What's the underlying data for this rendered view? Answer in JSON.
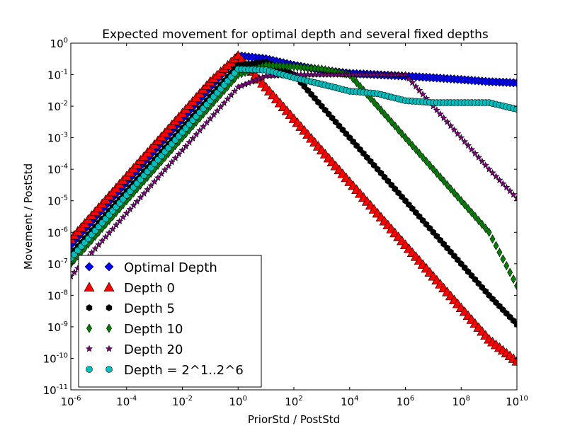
{
  "chart_data": {
    "type": "scatter",
    "title": "Expected movement for optimal depth and several fixed depths",
    "xlabel": "PriorStd / PostStd",
    "ylabel": "Movement / PostStd",
    "x_scale": "log",
    "y_scale": "log",
    "xlim": [
      1e-06,
      10000000000.0
    ],
    "ylim": [
      1e-11,
      1
    ],
    "grid": false,
    "legend_position": "lower-left",
    "x_ticks": [
      {
        "base": "10",
        "exp": "-6"
      },
      {
        "base": "10",
        "exp": "-4"
      },
      {
        "base": "10",
        "exp": "-2"
      },
      {
        "base": "10",
        "exp": "0"
      },
      {
        "base": "10",
        "exp": "2"
      },
      {
        "base": "10",
        "exp": "4"
      },
      {
        "base": "10",
        "exp": "6"
      },
      {
        "base": "10",
        "exp": "8"
      },
      {
        "base": "10",
        "exp": "10"
      }
    ],
    "y_ticks": [
      {
        "base": "10",
        "exp": "0"
      },
      {
        "base": "10",
        "exp": "-1"
      },
      {
        "base": "10",
        "exp": "-2"
      },
      {
        "base": "10",
        "exp": "-3"
      },
      {
        "base": "10",
        "exp": "-4"
      },
      {
        "base": "10",
        "exp": "-5"
      },
      {
        "base": "10",
        "exp": "-6"
      },
      {
        "base": "10",
        "exp": "-7"
      },
      {
        "base": "10",
        "exp": "-8"
      },
      {
        "base": "10",
        "exp": "-9"
      },
      {
        "base": "10",
        "exp": "-10"
      },
      {
        "base": "10",
        "exp": "-11"
      }
    ],
    "series": [
      {
        "name": "Optimal Depth",
        "marker": "diamond",
        "color": "#0000ff",
        "x": [
          1e-06,
          1e-05,
          0.0001,
          0.001,
          0.01,
          0.1,
          1,
          10,
          100,
          1000.0,
          10000.0,
          100000.0,
          1000000.0,
          10000000.0,
          100000000.0,
          1000000000.0,
          10000000000.0
        ],
        "y": [
          4e-07,
          4e-06,
          4e-05,
          0.0004,
          0.004,
          0.04,
          0.4,
          0.32,
          0.2,
          0.14,
          0.11,
          0.1,
          0.09,
          0.08,
          0.07,
          0.06,
          0.055
        ]
      },
      {
        "name": "Depth 0",
        "marker": "triangle",
        "color": "#ff0000",
        "x": [
          1e-06,
          1e-05,
          0.0001,
          0.001,
          0.01,
          0.1,
          1,
          10,
          100,
          1000.0,
          10000.0,
          100000.0,
          1000000.0,
          10000000.0,
          100000000.0,
          1000000000.0,
          10000000000.0
        ],
        "y": [
          6e-07,
          6e-06,
          6e-05,
          0.0006,
          0.006,
          0.06,
          0.4,
          0.04,
          0.004,
          0.0004,
          4e-05,
          4e-06,
          4e-07,
          4e-08,
          4e-09,
          4e-10,
          8e-11
        ]
      },
      {
        "name": "Depth 5",
        "marker": "hexagon",
        "color": "#000000",
        "x": [
          1e-06,
          1e-05,
          0.0001,
          0.001,
          0.01,
          0.1,
          1,
          10,
          100,
          1000.0,
          10000.0,
          100000.0,
          1000000.0,
          10000000.0,
          100000000.0,
          1000000000.0,
          10000000000.0
        ],
        "y": [
          2e-07,
          2e-06,
          2e-05,
          0.0002,
          0.002,
          0.02,
          0.2,
          0.25,
          0.1,
          0.01,
          0.001,
          0.0001,
          1e-05,
          1e-06,
          1e-07,
          1e-08,
          1.2e-09
        ]
      },
      {
        "name": "Depth 10",
        "marker": "thin_diamond",
        "color": "#008000",
        "x": [
          1e-06,
          1e-05,
          0.0001,
          0.001,
          0.01,
          0.1,
          1,
          10,
          100,
          1000.0,
          10000.0,
          100000.0,
          1000000.0,
          10000000.0,
          100000000.0,
          1000000000.0,
          10000000000.0
        ],
        "y": [
          1e-07,
          1e-06,
          1e-05,
          0.0001,
          0.001,
          0.01,
          0.1,
          0.2,
          0.18,
          0.15,
          0.1,
          0.01,
          0.001,
          0.0001,
          1e-05,
          1e-06,
          2e-08
        ]
      },
      {
        "name": "Depth 20",
        "marker": "star",
        "color": "#800080",
        "x": [
          1e-06,
          1e-05,
          0.0001,
          0.001,
          0.01,
          0.1,
          1,
          10,
          100,
          1000.0,
          10000.0,
          100000.0,
          1000000.0,
          10000000.0,
          100000000.0,
          1000000000.0,
          10000000000.0
        ],
        "y": [
          4e-08,
          4e-07,
          4e-06,
          4e-05,
          0.0004,
          0.004,
          0.04,
          0.09,
          0.1,
          0.1,
          0.1,
          0.1,
          0.1,
          0.01,
          0.001,
          0.0001,
          1.2e-05
        ]
      },
      {
        "name": "Depth = 2^1..2^6",
        "marker": "circle",
        "color": "#00bfbf",
        "x": [
          1e-06,
          1e-05,
          0.0001,
          0.001,
          0.01,
          0.1,
          1,
          10,
          100,
          1000.0,
          10000.0,
          100000.0,
          1000000.0,
          10000000.0,
          100000000.0,
          1000000000.0,
          10000000000.0
        ],
        "y": [
          1.5e-07,
          1.5e-06,
          1.5e-05,
          0.00015,
          0.0015,
          0.015,
          0.15,
          0.14,
          0.08,
          0.05,
          0.03,
          0.025,
          0.015,
          0.013,
          0.013,
          0.013,
          0.008
        ]
      }
    ]
  }
}
